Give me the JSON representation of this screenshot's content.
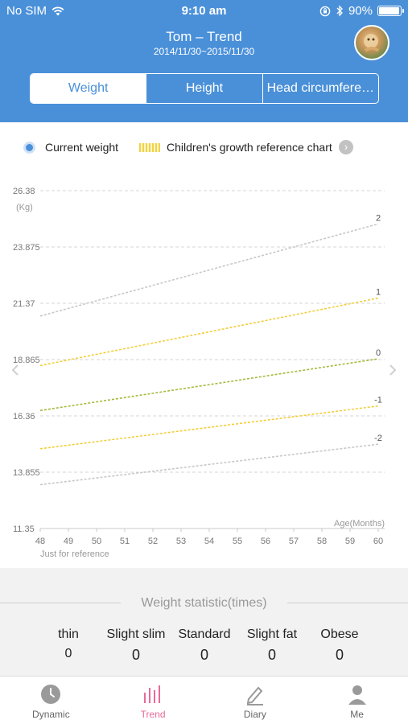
{
  "status_bar": {
    "carrier": "No SIM",
    "time": "9:10 am",
    "battery": "90%",
    "battery_level": 0.9
  },
  "header": {
    "title": "Tom – Trend",
    "date_range": "2014/11/30~2015/11/30",
    "tabs": [
      {
        "label": "Weight",
        "active": true
      },
      {
        "label": "Height",
        "active": false
      },
      {
        "label": "Head circumfere…",
        "active": false
      }
    ]
  },
  "legend": {
    "current": "Current weight",
    "reference": "Children's growth reference chart"
  },
  "chart_data": {
    "type": "line",
    "y_unit": "(Kg)",
    "x_axis_label": "Age(Months)",
    "note": "Just for reference",
    "x": [
      48,
      49,
      50,
      51,
      52,
      53,
      54,
      55,
      56,
      57,
      58,
      59,
      60
    ],
    "y_ticks": [
      "26.38",
      "23.875",
      "21.37",
      "18.865",
      "16.36",
      "13.855",
      "11.35"
    ],
    "ylim": [
      11.35,
      26.38
    ],
    "grid": true,
    "series": [
      {
        "name": "2",
        "x": [
          48,
          60
        ],
        "y": [
          20.8,
          24.9
        ],
        "color": "#c8c8c8"
      },
      {
        "name": "1",
        "x": [
          48,
          60
        ],
        "y": [
          18.6,
          21.6
        ],
        "color": "#f2cf3a"
      },
      {
        "name": "0",
        "x": [
          48,
          60
        ],
        "y": [
          16.6,
          18.9
        ],
        "color": "#a8b83a"
      },
      {
        "name": "-1",
        "x": [
          48,
          60
        ],
        "y": [
          14.9,
          16.8
        ],
        "color": "#f2cf3a"
      },
      {
        "name": "-2",
        "x": [
          48,
          60
        ],
        "y": [
          13.3,
          15.1
        ],
        "color": "#c8c8c8"
      }
    ]
  },
  "stats": {
    "title": "Weight statistic(times)",
    "items": [
      {
        "label": "thin",
        "value": "0"
      },
      {
        "label": "Slight slim",
        "value": "0"
      },
      {
        "label": "Standard",
        "value": "0"
      },
      {
        "label": "Slight fat",
        "value": "0"
      },
      {
        "label": "Obese",
        "value": "0"
      }
    ]
  },
  "nav": [
    {
      "label": "Dynamic",
      "icon": "clock-icon",
      "active": false
    },
    {
      "label": "Trend",
      "icon": "bar-chart-icon",
      "active": true
    },
    {
      "label": "Diary",
      "icon": "pen-icon",
      "active": false
    },
    {
      "label": "Me",
      "icon": "person-icon",
      "active": false
    }
  ]
}
